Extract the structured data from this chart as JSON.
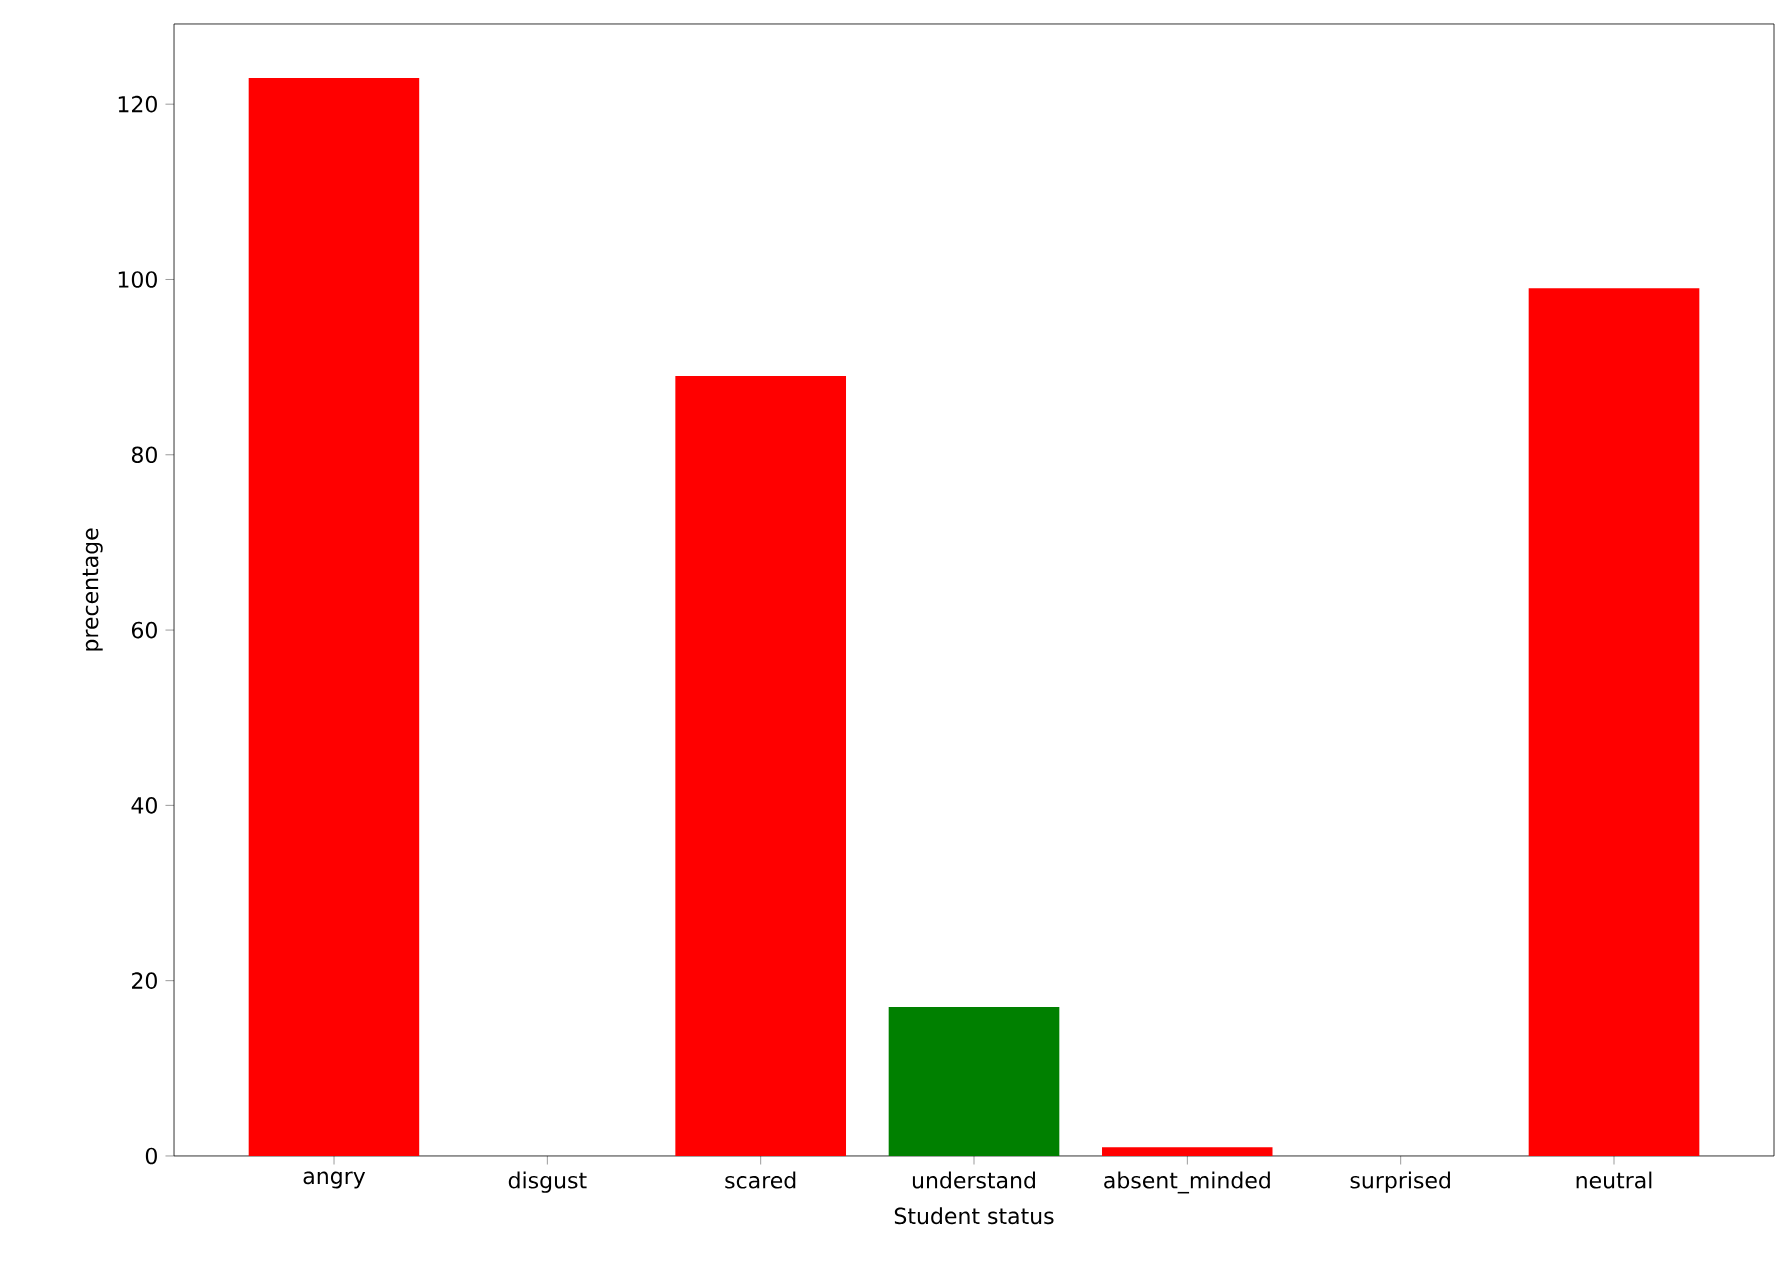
{
  "chart_data": {
    "type": "bar",
    "categories": [
      "angry",
      "disgust",
      "scared",
      "understand",
      "absent_minded",
      "surprised",
      "neutral"
    ],
    "values": [
      123,
      0,
      89,
      17,
      1,
      0,
      99
    ],
    "colors": [
      "#ff0000",
      "#ff0000",
      "#ff0000",
      "#008000",
      "#ff0000",
      "#ff0000",
      "#ff0000"
    ],
    "xlabel": "Student status",
    "ylabel": "precentage",
    "ylim": [
      0,
      129.15
    ],
    "yticks": [
      0,
      20,
      40,
      60,
      80,
      100,
      120
    ],
    "grid": false
  }
}
